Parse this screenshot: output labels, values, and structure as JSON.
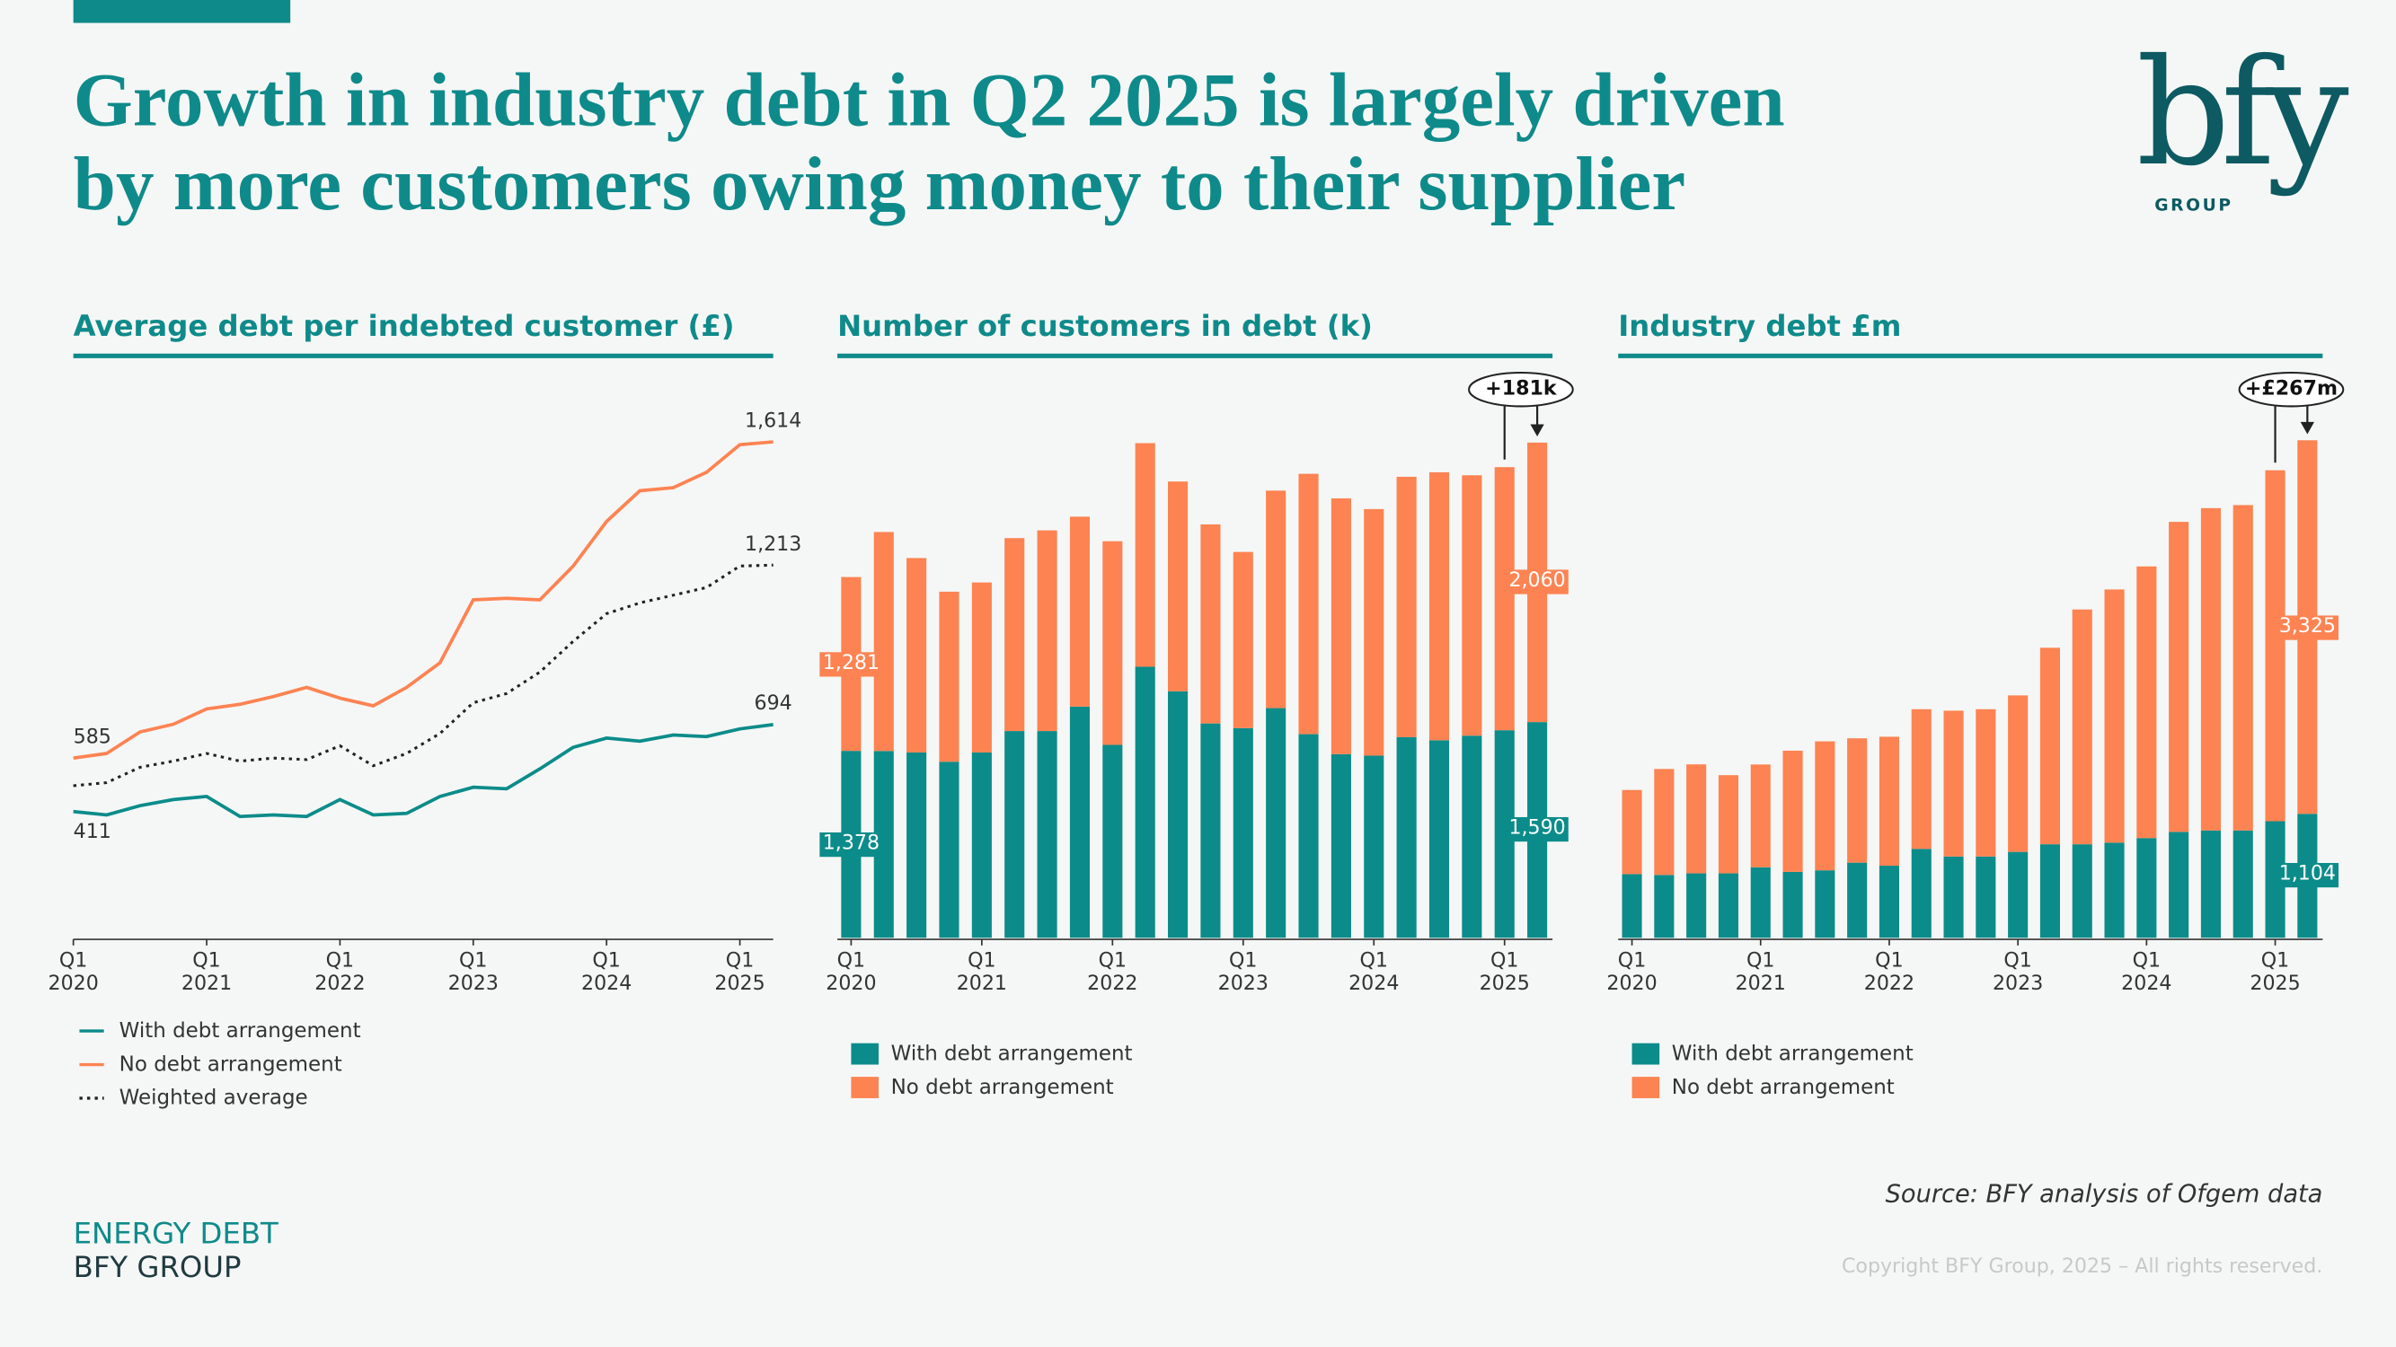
{
  "title": "Growth in industry debt in Q2 2025 is largely driven\nby more customers owing money to their supplier",
  "logo": {
    "mark": "bfy",
    "text": "GROUP"
  },
  "chart_data": [
    {
      "type": "line",
      "title": "Average debt per indebted customer (£)",
      "categories": [
        "Q1\n2020",
        null,
        null,
        null,
        "Q1\n2021",
        null,
        null,
        null,
        "Q1\n2022",
        null,
        null,
        null,
        "Q1\n2023",
        null,
        null,
        null,
        "Q1\n2024",
        null,
        null,
        null,
        "Q1\n2025",
        null
      ],
      "ylim": [
        0,
        1700
      ],
      "series": [
        {
          "name": "With debt arrangement",
          "color": "#0b8c8a",
          "dash": false,
          "values": [
            411,
            400,
            430,
            450,
            460,
            395,
            400,
            395,
            450,
            400,
            405,
            460,
            490,
            485,
            550,
            620,
            650,
            640,
            660,
            655,
            680,
            694
          ],
          "value_labels": [
            "411",
            null,
            null,
            null,
            null,
            null,
            null,
            null,
            null,
            null,
            null,
            null,
            null,
            null,
            null,
            null,
            null,
            null,
            null,
            null,
            null,
            "694"
          ]
        },
        {
          "name": "No debt arrangement",
          "color": "#fd8352",
          "dash": false,
          "values": [
            585,
            600,
            670,
            695,
            745,
            760,
            785,
            815,
            780,
            755,
            815,
            895,
            1100,
            1105,
            1100,
            1210,
            1355,
            1455,
            1465,
            1515,
            1605,
            1614
          ],
          "value_labels": [
            "585",
            null,
            null,
            null,
            null,
            null,
            null,
            null,
            null,
            null,
            null,
            null,
            null,
            null,
            null,
            null,
            null,
            null,
            null,
            null,
            null,
            "1,614"
          ]
        },
        {
          "name": "Weighted average",
          "color": "#222222",
          "dash": true,
          "values": [
            495,
            505,
            555,
            575,
            600,
            575,
            585,
            580,
            625,
            560,
            600,
            665,
            765,
            795,
            865,
            965,
            1055,
            1090,
            1115,
            1140,
            1210,
            1213
          ],
          "value_labels": [
            null,
            null,
            null,
            null,
            null,
            null,
            null,
            null,
            null,
            null,
            null,
            null,
            null,
            null,
            null,
            null,
            null,
            null,
            null,
            null,
            null,
            "1,213"
          ]
        }
      ]
    },
    {
      "type": "bar",
      "title": "Number of customers in debt (k)",
      "stacked": true,
      "annotation": "+181k",
      "categories": [
        "Q1\n2020",
        null,
        null,
        null,
        "Q1\n2021",
        null,
        null,
        null,
        "Q1\n2022",
        null,
        null,
        null,
        "Q1\n2023",
        null,
        null,
        null,
        "Q1\n2024",
        null,
        null,
        null,
        "Q1\n2025",
        null
      ],
      "ylim": [
        0,
        3850
      ],
      "series": [
        {
          "name": "With debt arrangement",
          "color": "#0b8c8a",
          "values": [
            1378,
            1377,
            1366,
            1298,
            1366,
            1524,
            1524,
            1704,
            1422,
            1998,
            1817,
            1580,
            1546,
            1693,
            1501,
            1354,
            1343,
            1479,
            1456,
            1490,
            1530,
            1590
          ],
          "value_labels": [
            "1,378",
            null,
            null,
            null,
            null,
            null,
            null,
            null,
            null,
            null,
            null,
            null,
            null,
            null,
            null,
            null,
            null,
            null,
            null,
            null,
            null,
            "1,590"
          ]
        },
        {
          "name": "No debt arrangement",
          "color": "#fd8352",
          "values": [
            1281,
            1614,
            1433,
            1253,
            1253,
            1422,
            1479,
            1400,
            1501,
            1648,
            1546,
            1467,
            1298,
            1603,
            1919,
            1885,
            1817,
            1919,
            1975,
            1919,
            1939,
            2060
          ],
          "value_labels": [
            "1,281",
            null,
            null,
            null,
            null,
            null,
            null,
            null,
            null,
            null,
            null,
            null,
            null,
            null,
            null,
            null,
            null,
            null,
            null,
            null,
            null,
            "2,060"
          ]
        }
      ]
    },
    {
      "type": "bar",
      "title": "Industry debt £m",
      "stacked": true,
      "annotation": "+£267m",
      "categories": [
        "Q1\n2020",
        null,
        null,
        null,
        "Q1\n2021",
        null,
        null,
        null,
        "Q1\n2022",
        null,
        null,
        null,
        "Q1\n2023",
        null,
        null,
        null,
        "Q1\n2024",
        null,
        null,
        null,
        "Q1\n2025",
        null
      ],
      "ylim": [
        0,
        4650
      ],
      "series": [
        {
          "name": "With debt arrangement",
          "color": "#0b8c8a",
          "values": [
            567,
            560,
            574,
            574,
            628,
            587,
            601,
            669,
            642,
            792,
            724,
            724,
            765,
            833,
            833,
            847,
            888,
            943,
            956,
            956,
            1038,
            1104
          ],
          "value_labels": [
            null,
            null,
            null,
            null,
            null,
            null,
            null,
            null,
            null,
            null,
            null,
            null,
            null,
            null,
            null,
            null,
            null,
            null,
            null,
            null,
            null,
            "1,104"
          ]
        },
        {
          "name": "No debt arrangement",
          "color": "#fd8352",
          "values": [
            749,
            943,
            970,
            874,
            915,
            1079,
            1148,
            1107,
            1148,
            1243,
            1298,
            1311,
            1393,
            1749,
            2090,
            2254,
            2418,
            2760,
            2869,
            2896,
            3124,
            3325
          ],
          "value_labels": [
            null,
            null,
            null,
            null,
            null,
            null,
            null,
            null,
            null,
            null,
            null,
            null,
            null,
            null,
            null,
            null,
            null,
            null,
            null,
            null,
            null,
            "3,325"
          ]
        }
      ]
    }
  ],
  "source": "Source: BFY analysis of Ofgem data",
  "footer": {
    "line1": "ENERGY DEBT",
    "line2": "BFY GROUP"
  },
  "copyright": "Copyright BFY Group, 2025 – All rights reserved."
}
